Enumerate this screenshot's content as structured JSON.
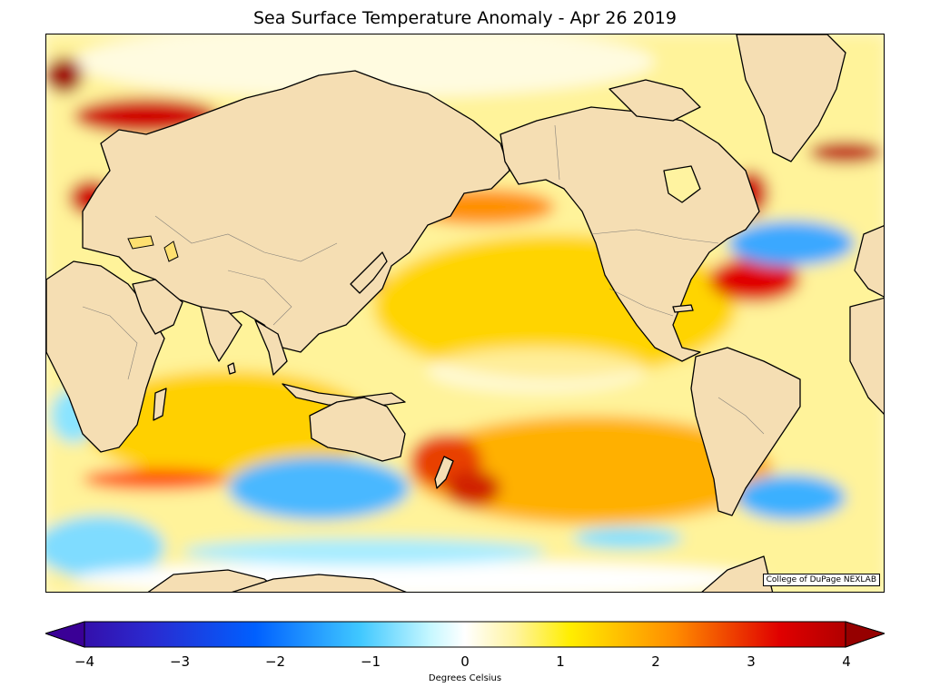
{
  "title": "Sea Surface Temperature Anomaly - Apr 26 2019",
  "credit": "College of DuPage NEXLAB",
  "colorbar": {
    "label": "Degrees Celsius",
    "ticks": [
      "−4",
      "−3",
      "−2",
      "−1",
      "0",
      "1",
      "2",
      "3",
      "4"
    ],
    "min": -4,
    "max": 4,
    "colors": {
      "land": "#f5deb3",
      "coast": "#000000",
      "cold_max": "#3a0096",
      "cold": "#0050ff",
      "cool": "#6ee6ff",
      "neutral": "#ffffff",
      "warm": "#ffee00",
      "hot": "#ff6a00",
      "hot_max": "#960000"
    }
  }
}
